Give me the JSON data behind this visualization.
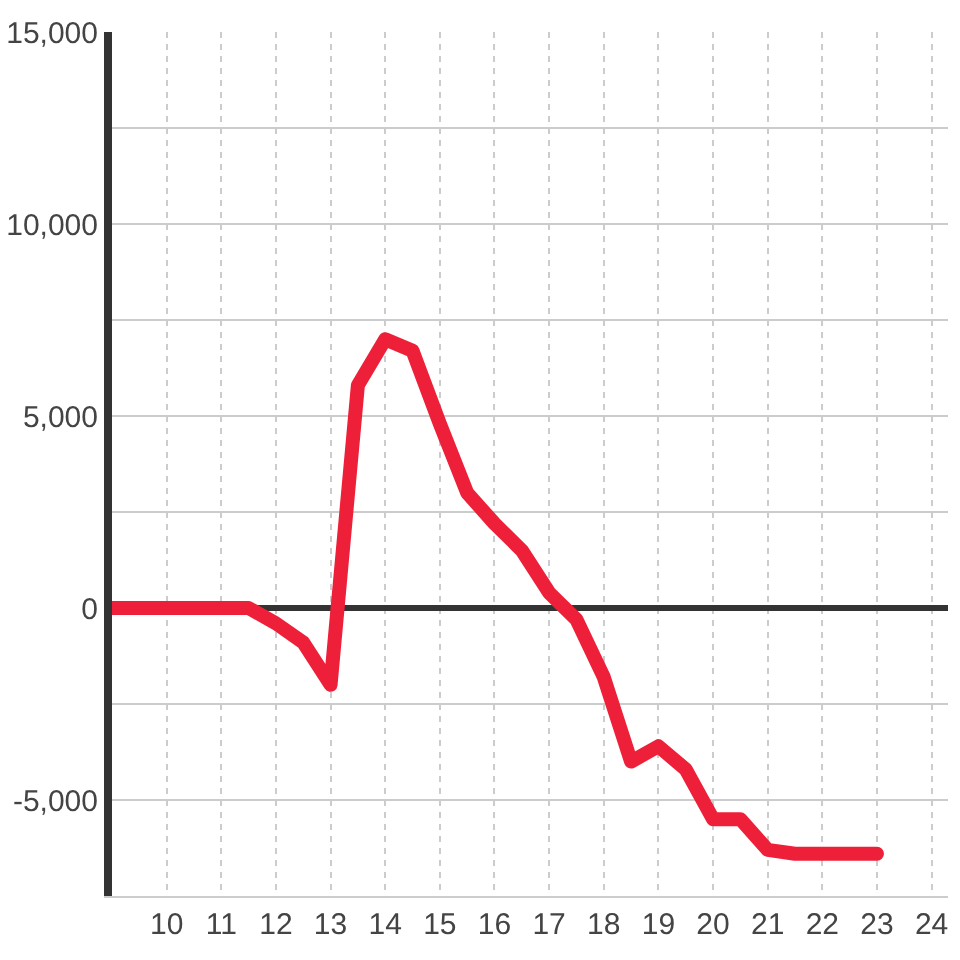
{
  "chart_data": {
    "type": "line",
    "x": [
      9,
      9.5,
      10,
      10.5,
      11,
      11.5,
      12,
      12.5,
      13,
      13.5,
      14,
      14.5,
      15,
      15.5,
      16,
      16.5,
      17,
      17.5,
      18,
      18.5,
      19,
      19.5,
      20,
      20.5,
      21,
      21.5,
      22,
      22.5,
      23
    ],
    "values": [
      0,
      0,
      0,
      0,
      0,
      0,
      -400,
      -900,
      -2000,
      5800,
      7000,
      6700,
      4800,
      3000,
      2200,
      1500,
      400,
      -300,
      -1800,
      -4000,
      -3600,
      -4200,
      -5500,
      -5500,
      -6300,
      -6400,
      -6400,
      -6400,
      -6400
    ],
    "color": "#ee2039",
    "xlim": [
      9,
      24.3
    ],
    "xticks": [
      10,
      11,
      12,
      13,
      14,
      15,
      16,
      17,
      18,
      19,
      20,
      21,
      22,
      23,
      24
    ],
    "ylim": [
      -7500,
      15000
    ],
    "yticks": [
      {
        "value": -7500,
        "label": null
      },
      {
        "value": -5000,
        "label": "-5,000"
      },
      {
        "value": -2500,
        "label": null
      },
      {
        "value": 0,
        "label": "0"
      },
      {
        "value": 2500,
        "label": null
      },
      {
        "value": 5000,
        "label": "5,000"
      },
      {
        "value": 7500,
        "label": null
      },
      {
        "value": 10000,
        "label": "10,000"
      },
      {
        "value": 12500,
        "label": null
      },
      {
        "value": 15000,
        "label": "15,000"
      }
    ],
    "grid": true,
    "legend": false,
    "marker": "none",
    "line_style": "solid"
  }
}
